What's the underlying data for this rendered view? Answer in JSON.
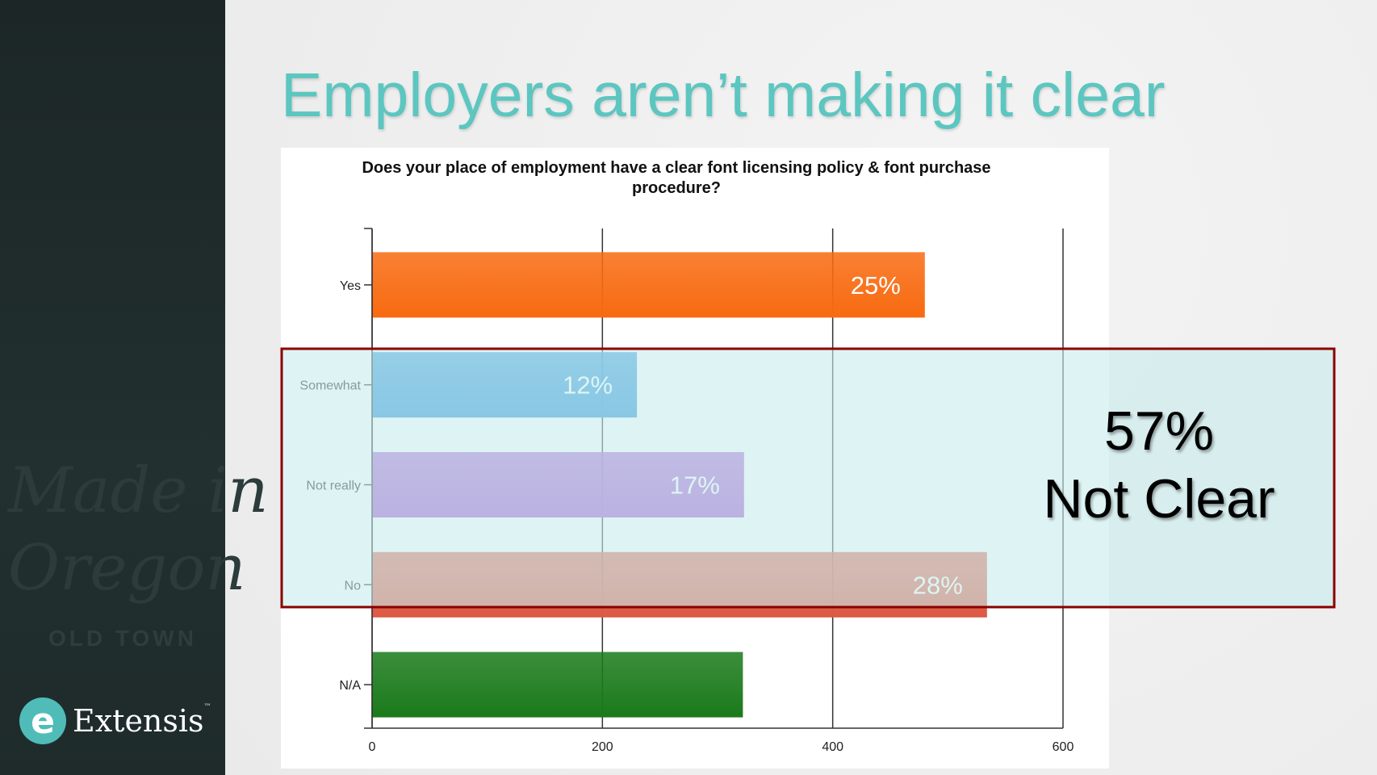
{
  "slide": {
    "title": "Employers aren’t making it clear"
  },
  "logo": {
    "name": "Extensis",
    "tm": "™",
    "glyph": "e"
  },
  "sidebar_art": {
    "line1": "Made in",
    "line2": "Oregon",
    "line3": "OLD TOWN"
  },
  "callout": {
    "percent": "57%",
    "label": "Not Clear"
  },
  "colors": {
    "accent": "#5cc6c0",
    "highlight_border": "#8b0000",
    "highlight_fill": "#c8ecec"
  },
  "chart_data": {
    "type": "bar",
    "orientation": "horizontal",
    "title": "Does your place of employment have a clear font licensing policy & font purchase procedure?",
    "title_lines": [
      "Does your place of employment have a clear font licensing policy & font purchase",
      "procedure?"
    ],
    "categories": [
      "Yes",
      "Somewhat",
      "Not really",
      "No",
      "N/A"
    ],
    "values": [
      480,
      230,
      323,
      534,
      322
    ],
    "data_labels": [
      "25%",
      "12%",
      "17%",
      "28%",
      ""
    ],
    "colors": [
      "#f86a10",
      "#2a90d8",
      "#a75ad0",
      "#dc5a44",
      "#1a7a1a"
    ],
    "xlim": [
      0,
      600
    ],
    "xticks": [
      0,
      200,
      400,
      600
    ],
    "xtick_labels": [
      "0",
      "200",
      "400",
      "600"
    ],
    "grid": true,
    "highlighted_categories": [
      "Somewhat",
      "Not really",
      "No"
    ]
  }
}
